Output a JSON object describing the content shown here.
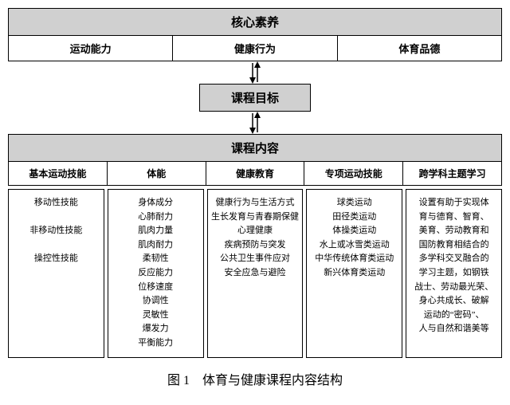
{
  "colors": {
    "header_bg": "#d0d0d0",
    "border": "#000000",
    "bg": "#ffffff",
    "text": "#000000"
  },
  "fontsize": {
    "header": 15,
    "subheader": 13,
    "body": 11,
    "caption": 16
  },
  "top": {
    "title": "核心素养",
    "items": [
      "运动能力",
      "健康行为",
      "体育品德"
    ]
  },
  "mid": {
    "title": "课程目标"
  },
  "course": {
    "title": "课程内容",
    "columns": [
      {
        "header": "基本运动技能",
        "lines": [
          "移动性技能",
          "",
          "非移动性技能",
          "",
          "操控性技能"
        ]
      },
      {
        "header": "体能",
        "lines": [
          "身体成分",
          "心肺耐力",
          "肌肉力量",
          "肌肉耐力",
          "柔韧性",
          "反应能力",
          "位移速度",
          "协调性",
          "灵敏性",
          "爆发力",
          "平衡能力"
        ]
      },
      {
        "header": "健康教育",
        "lines": [
          "健康行为与生活方式",
          "生长发育与青春期保健",
          "心理健康",
          "疾病预防与突发",
          "公共卫生事件应对",
          "安全应急与避险"
        ]
      },
      {
        "header": "专项运动技能",
        "lines": [
          "球类运动",
          "田径类运动",
          "体操类运动",
          "水上或冰雪类运动",
          "中华传统体育类运动",
          "新兴体育类运动"
        ]
      },
      {
        "header": "跨学科主题学习",
        "lines": [
          "设置有助于实现体",
          "育与德育、智育、",
          "美育、劳动教育和",
          "国防教育相结合的",
          "多学科交叉融合的",
          "学习主题，如钢铁",
          "战士、劳动最光荣、",
          "身心共成长、破解",
          "运动的“密码”、",
          "人与自然和谐美等"
        ]
      }
    ]
  },
  "caption": "图 1　体育与健康课程内容结构"
}
